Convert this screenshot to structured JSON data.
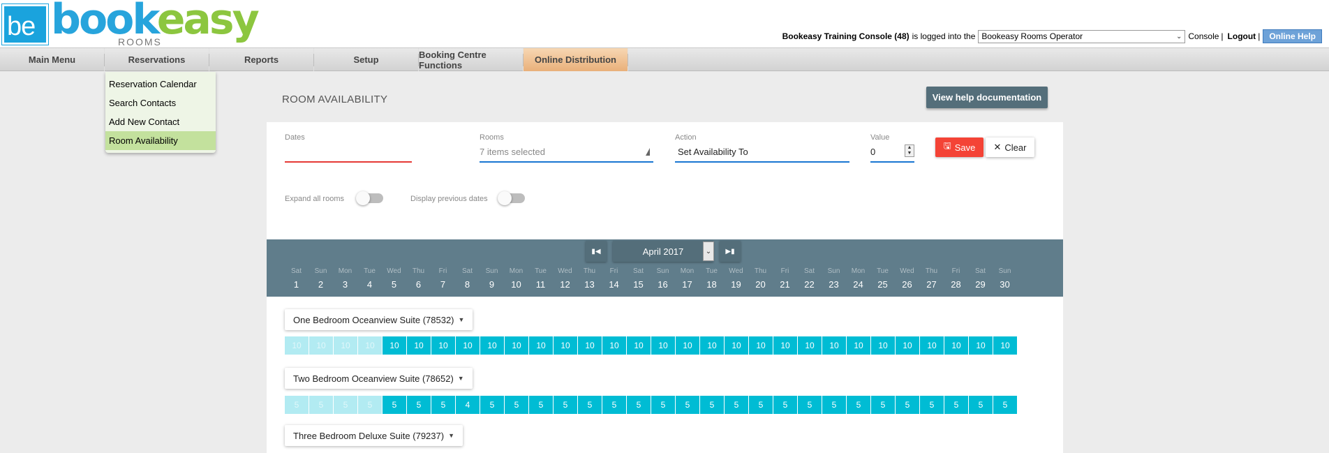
{
  "logo": {
    "mark": "be",
    "word_part1": "book",
    "word_part2": "easy",
    "subtitle": "ROOMS"
  },
  "login": {
    "console_name": "Bookeasy Training Console (48)",
    "logged_text": "is logged into the",
    "operator": "Bookeasy Rooms Operator",
    "console_link": "Console",
    "separator": "|",
    "logout": "Logout",
    "separator2": "|",
    "help": "Online Help"
  },
  "nav": [
    "Main Menu",
    "Reservations",
    "Reports",
    "Setup",
    "Booking Centre Functions",
    "Online Distribution"
  ],
  "dropdown": [
    "Reservation Calendar",
    "Search Contacts",
    "Add New Contact",
    "Room Availability"
  ],
  "page": {
    "title": "ROOM AVAILABILITY",
    "help_button": "View help documentation"
  },
  "filters": {
    "dates_label": "Dates",
    "rooms_label": "Rooms",
    "rooms_value": "7 items selected",
    "action_label": "Action",
    "action_value": "Set Availability To",
    "value_label": "Value",
    "value": "0",
    "save": "Save",
    "clear": "Clear",
    "expand_label": "Expand all rooms",
    "expand_on": false,
    "previous_label": "Display previous dates",
    "previous_on": false
  },
  "calendar": {
    "month": "April 2017",
    "days": [
      {
        "d": "Sat",
        "n": "1"
      },
      {
        "d": "Sun",
        "n": "2"
      },
      {
        "d": "Mon",
        "n": "3"
      },
      {
        "d": "Tue",
        "n": "4"
      },
      {
        "d": "Wed",
        "n": "5"
      },
      {
        "d": "Thu",
        "n": "6"
      },
      {
        "d": "Fri",
        "n": "7"
      },
      {
        "d": "Sat",
        "n": "8"
      },
      {
        "d": "Sun",
        "n": "9"
      },
      {
        "d": "Mon",
        "n": "10"
      },
      {
        "d": "Tue",
        "n": "11"
      },
      {
        "d": "Wed",
        "n": "12"
      },
      {
        "d": "Thu",
        "n": "13"
      },
      {
        "d": "Fri",
        "n": "14"
      },
      {
        "d": "Sat",
        "n": "15"
      },
      {
        "d": "Sun",
        "n": "16"
      },
      {
        "d": "Mon",
        "n": "17"
      },
      {
        "d": "Tue",
        "n": "18"
      },
      {
        "d": "Wed",
        "n": "19"
      },
      {
        "d": "Thu",
        "n": "20"
      },
      {
        "d": "Fri",
        "n": "21"
      },
      {
        "d": "Sat",
        "n": "22"
      },
      {
        "d": "Sun",
        "n": "23"
      },
      {
        "d": "Mon",
        "n": "24"
      },
      {
        "d": "Tue",
        "n": "25"
      },
      {
        "d": "Wed",
        "n": "26"
      },
      {
        "d": "Thu",
        "n": "27"
      },
      {
        "d": "Fri",
        "n": "28"
      },
      {
        "d": "Sat",
        "n": "29"
      },
      {
        "d": "Sun",
        "n": "30"
      }
    ],
    "past_days": 4
  },
  "rooms": [
    {
      "name": "One Bedroom Oceanview Suite (78532)",
      "values": [
        "10",
        "10",
        "10",
        "10",
        "10",
        "10",
        "10",
        "10",
        "10",
        "10",
        "10",
        "10",
        "10",
        "10",
        "10",
        "10",
        "10",
        "10",
        "10",
        "10",
        "10",
        "10",
        "10",
        "10",
        "10",
        "10",
        "10",
        "10",
        "10",
        "10"
      ]
    },
    {
      "name": "Two Bedroom Oceanview Suite (78652)",
      "values": [
        "5",
        "5",
        "5",
        "5",
        "5",
        "5",
        "5",
        "4",
        "5",
        "5",
        "5",
        "5",
        "5",
        "5",
        "5",
        "5",
        "5",
        "5",
        "5",
        "5",
        "5",
        "5",
        "5",
        "5",
        "5",
        "5",
        "5",
        "5",
        "5",
        "5"
      ]
    },
    {
      "name": "Three Bedroom Deluxe Suite (79237)",
      "values": []
    }
  ],
  "colors": {
    "accent": "#00bcd4",
    "past": "#b2ebf2",
    "header": "#607d8b",
    "save": "#f44336",
    "active_nav": "#e9b07a"
  }
}
